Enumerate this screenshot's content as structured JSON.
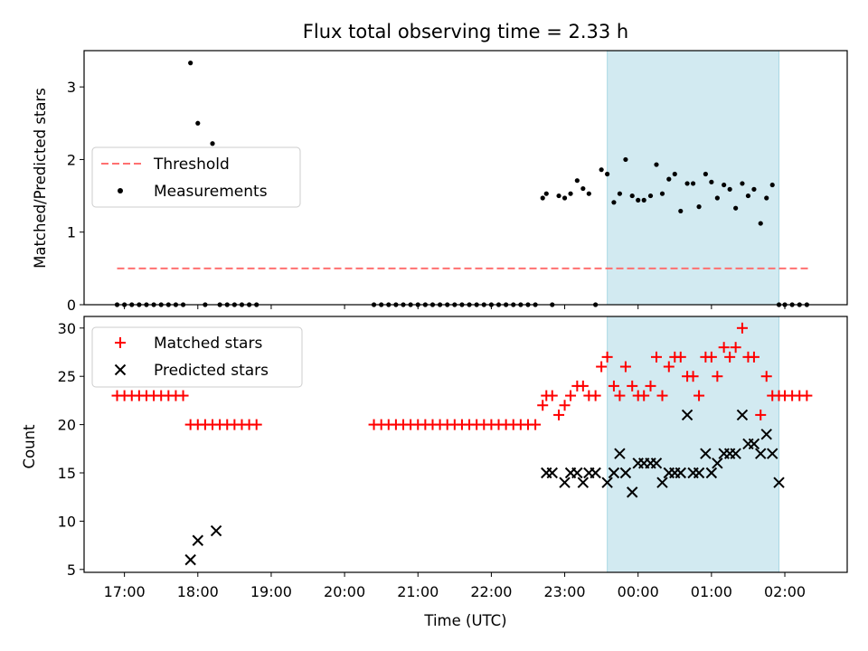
{
  "title": "Flux total observing time = 2.33 h",
  "xlabel": "Time (UTC)",
  "xticks": [
    "17:00",
    "18:00",
    "19:00",
    "20:00",
    "21:00",
    "22:00",
    "23:00",
    "00:00",
    "01:00",
    "02:00"
  ],
  "colors": {
    "threshold": "#ff7070",
    "measurements": "#000000",
    "matched": "#ff0000",
    "predicted": "#000000",
    "span": "#add8e6"
  },
  "chart_data": [
    {
      "type": "scatter",
      "ylabel": "Matched/Predicted stars",
      "ylim": [
        0,
        3.5
      ],
      "yticks": [
        "0",
        "1",
        "2",
        "3"
      ],
      "xlim_hours": [
        16.45,
        26.85
      ],
      "highlight_span_hours": [
        23.58,
        25.92
      ],
      "legend": {
        "placement": "center-left",
        "entries": [
          "Threshold",
          "Measurements"
        ]
      },
      "threshold": {
        "name": "Threshold",
        "value": 0.5,
        "x_hours": [
          16.9,
          26.35
        ]
      },
      "series": [
        {
          "name": "Measurements",
          "style": "dot",
          "x_hours": [
            16.9,
            17.0,
            17.1,
            17.2,
            17.3,
            17.4,
            17.5,
            17.6,
            17.7,
            17.8,
            17.9,
            18.0,
            18.1,
            18.2,
            18.3,
            18.4,
            18.5,
            18.6,
            18.7,
            18.8,
            20.4,
            20.5,
            20.6,
            20.7,
            20.8,
            20.9,
            21.0,
            21.1,
            21.2,
            21.3,
            21.4,
            21.5,
            21.6,
            21.7,
            21.8,
            21.9,
            22.0,
            22.1,
            22.2,
            22.3,
            22.4,
            22.5,
            22.6,
            22.7,
            22.75,
            22.83,
            22.92,
            23.0,
            23.08,
            23.17,
            23.25,
            23.33,
            23.42,
            23.5,
            23.58,
            23.67,
            23.75,
            23.83,
            23.92,
            24.0,
            24.08,
            24.17,
            24.25,
            24.33,
            24.42,
            24.5,
            24.58,
            24.67,
            24.75,
            24.83,
            24.92,
            25.0,
            25.08,
            25.17,
            25.25,
            25.33,
            25.42,
            25.5,
            25.58,
            25.67,
            25.75,
            25.83,
            25.92,
            26.0,
            26.1,
            26.2,
            26.3
          ],
          "y": [
            0,
            0,
            0,
            0,
            0,
            0,
            0,
            0,
            0,
            0,
            3.33,
            2.5,
            0,
            2.22,
            0,
            0,
            0,
            0,
            0,
            0,
            0,
            0,
            0,
            0,
            0,
            0,
            0,
            0,
            0,
            0,
            0,
            0,
            0,
            0,
            0,
            0,
            0,
            0,
            0,
            0,
            0,
            0,
            0,
            1.47,
            1.53,
            0,
            1.5,
            1.47,
            1.53,
            1.71,
            1.6,
            1.53,
            0,
            1.86,
            1.8,
            1.41,
            1.53,
            2.0,
            1.5,
            1.44,
            1.44,
            1.5,
            1.93,
            1.53,
            1.73,
            1.8,
            1.29,
            1.67,
            1.67,
            1.35,
            1.8,
            1.69,
            1.47,
            1.65,
            1.59,
            1.33,
            1.67,
            1.5,
            1.59,
            1.12,
            1.47,
            1.65,
            0,
            0,
            0,
            0,
            0
          ]
        }
      ]
    },
    {
      "type": "scatter",
      "ylabel": "Count",
      "ylim": [
        4.7,
        31.2
      ],
      "yticks": [
        "5",
        "10",
        "15",
        "20",
        "25",
        "30"
      ],
      "xlim_hours": [
        16.45,
        26.85
      ],
      "highlight_span_hours": [
        23.58,
        25.92
      ],
      "legend": {
        "placement": "top-left",
        "entries": [
          "Matched stars",
          "Predicted stars"
        ]
      },
      "series": [
        {
          "name": "Matched stars",
          "marker": "+",
          "x_hours": [
            16.9,
            17.0,
            17.1,
            17.2,
            17.3,
            17.4,
            17.5,
            17.6,
            17.7,
            17.8,
            17.9,
            18.0,
            18.1,
            18.2,
            18.3,
            18.4,
            18.5,
            18.6,
            18.7,
            18.8,
            20.4,
            20.5,
            20.6,
            20.7,
            20.8,
            20.9,
            21.0,
            21.1,
            21.2,
            21.3,
            21.4,
            21.5,
            21.6,
            21.7,
            21.8,
            21.9,
            22.0,
            22.1,
            22.2,
            22.3,
            22.4,
            22.5,
            22.6,
            22.7,
            22.75,
            22.83,
            22.92,
            23.0,
            23.08,
            23.17,
            23.25,
            23.33,
            23.42,
            23.5,
            23.58,
            23.67,
            23.75,
            23.83,
            23.92,
            24.0,
            24.08,
            24.17,
            24.25,
            24.33,
            24.42,
            24.5,
            24.58,
            24.67,
            24.75,
            24.83,
            24.92,
            25.0,
            25.08,
            25.17,
            25.25,
            25.33,
            25.42,
            25.5,
            25.58,
            25.67,
            25.75,
            25.83,
            25.92,
            26.0,
            26.1,
            26.2,
            26.3
          ],
          "y": [
            23,
            23,
            23,
            23,
            23,
            23,
            23,
            23,
            23,
            23,
            20,
            20,
            20,
            20,
            20,
            20,
            20,
            20,
            20,
            20,
            20,
            20,
            20,
            20,
            20,
            20,
            20,
            20,
            20,
            20,
            20,
            20,
            20,
            20,
            20,
            20,
            20,
            20,
            20,
            20,
            20,
            20,
            20,
            22,
            23,
            23,
            21,
            22,
            23,
            24,
            24,
            23,
            23,
            26,
            27,
            24,
            23,
            26,
            24,
            23,
            23,
            24,
            27,
            23,
            26,
            27,
            27,
            25,
            25,
            23,
            27,
            27,
            25,
            28,
            27,
            28,
            30,
            27,
            27,
            21,
            25,
            23,
            23,
            23,
            23,
            23,
            23
          ]
        },
        {
          "name": "Predicted stars",
          "marker": "x",
          "x_hours": [
            17.9,
            18.0,
            18.25,
            22.75,
            22.83,
            23.0,
            23.08,
            23.17,
            23.25,
            23.33,
            23.42,
            23.58,
            23.67,
            23.75,
            23.83,
            23.92,
            24.0,
            24.08,
            24.17,
            24.25,
            24.33,
            24.42,
            24.5,
            24.58,
            24.67,
            24.75,
            24.83,
            24.92,
            25.0,
            25.08,
            25.17,
            25.25,
            25.33,
            25.42,
            25.5,
            25.58,
            25.67,
            25.75,
            25.83,
            25.92
          ],
          "y": [
            6,
            8,
            9,
            15,
            15,
            14,
            15,
            15,
            14,
            15,
            15,
            14,
            15,
            17,
            15,
            13,
            16,
            16,
            16,
            16,
            14,
            15,
            15,
            15,
            21,
            15,
            15,
            17,
            15,
            16,
            17,
            17,
            17,
            21,
            18,
            18,
            17,
            19,
            17,
            14
          ]
        }
      ]
    }
  ]
}
